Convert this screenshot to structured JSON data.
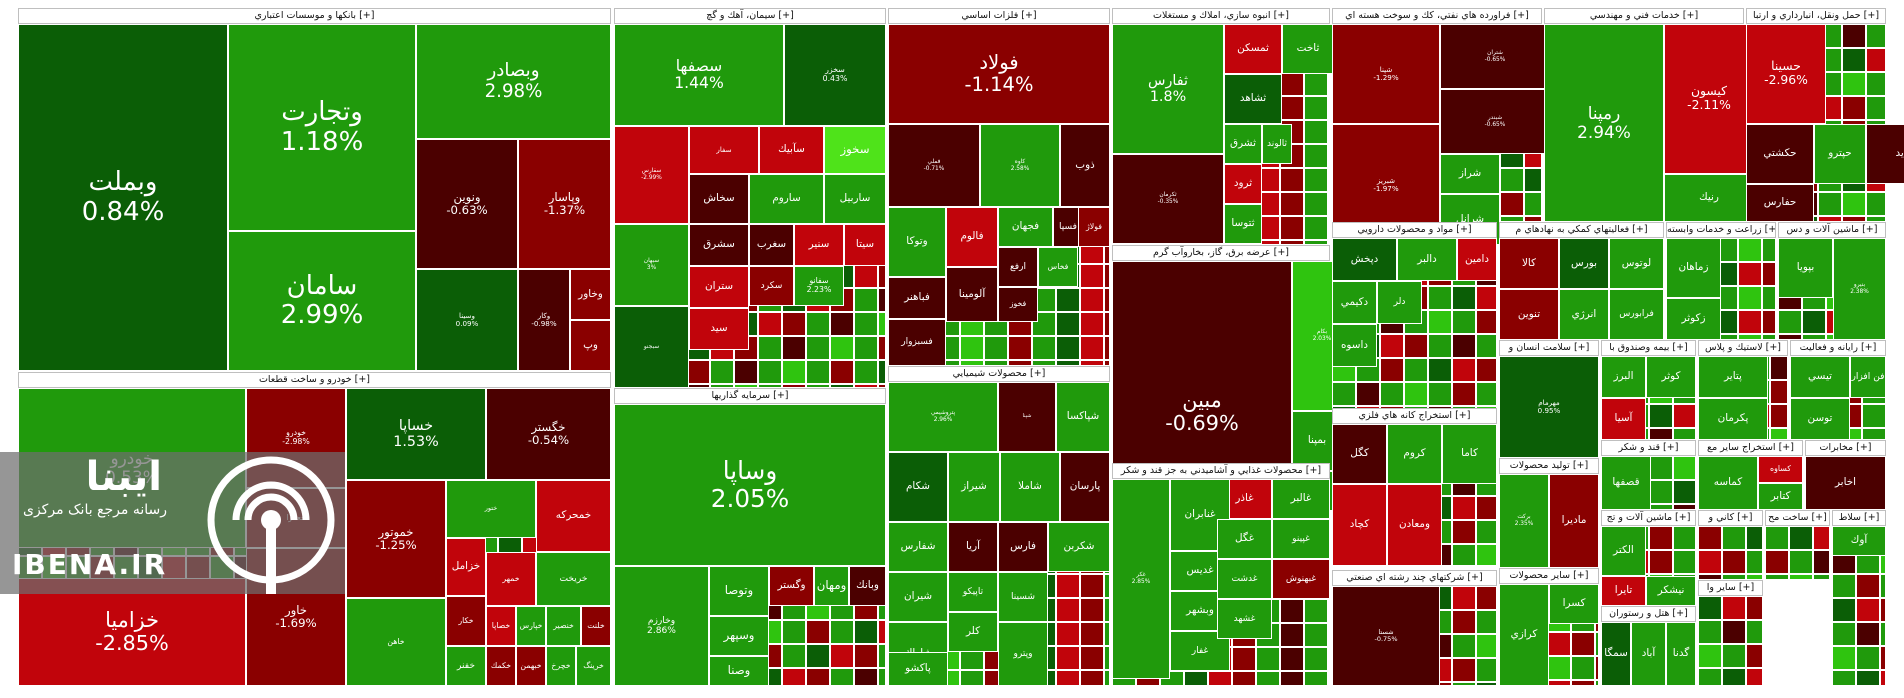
{
  "colors": {
    "deep_green": "#0b5e06",
    "green": "#209a0c",
    "light_green": "#2fc40f",
    "neon_green": "#4fe31a",
    "deep_red": "#4b0000",
    "red": "#8a0000",
    "bright_red": "#c1040b",
    "header_bg": "#ffffff"
  },
  "logo": {
    "brand": "ایبنا",
    "tagline": "رسانه مرجع بانک مرکزی",
    "site": "IBENA.IR"
  },
  "chart_data": {
    "type": "treemap",
    "sectors": [
      {
        "name": "بانکها و موسسات اعتباري [+]",
        "tiles": [
          {
            "s": "وبملت",
            "v": 0.84,
            "c": "deep_green"
          },
          {
            "s": "وتجارت",
            "v": 1.18,
            "c": "green"
          },
          {
            "s": "وبصادر",
            "v": 2.98,
            "c": "green"
          },
          {
            "s": "سامان",
            "v": 2.99,
            "c": "green"
          },
          {
            "s": "ونوين",
            "v": -0.63,
            "c": "deep_red"
          },
          {
            "s": "وپاسار",
            "v": -1.37,
            "c": "red"
          },
          {
            "s": "وسينا",
            "v": 0.09,
            "c": "deep_green"
          },
          {
            "s": "وكار",
            "v": -0.98,
            "c": "deep_red"
          },
          {
            "s": "وخاور",
            "c": "red"
          },
          {
            "s": "وپ",
            "c": "red"
          }
        ]
      },
      {
        "name": "خودرو و ساخت قطعات [+]",
        "tiles": [
          {
            "s": "خودرو",
            "v": 0.53,
            "c": "green"
          },
          {
            "s": "خساپا",
            "v": 1.53,
            "c": "deep_green"
          },
          {
            "s": "خگستر",
            "v": -0.54,
            "c": "deep_red"
          },
          {
            "s": "خموتور",
            "v": -1.25,
            "c": "red"
          },
          {
            "s": "خاور",
            "v": -1.69,
            "c": "red"
          },
          {
            "s": "خزاميا",
            "v": -2.85,
            "c": "bright_red"
          },
          {
            "s": "خمحركه",
            "c": "bright_red"
          },
          {
            "s": "ختور",
            "c": "green"
          },
          {
            "s": "خزامل",
            "c": "bright_red"
          },
          {
            "s": "خمهر",
            "c": "bright_red"
          },
          {
            "s": "خريخت",
            "c": "green"
          },
          {
            "s": "خكار",
            "c": "red"
          },
          {
            "s": "خصاپا",
            "c": "bright_red"
          },
          {
            "s": "خپارس",
            "c": "green"
          },
          {
            "s": "خنصير",
            "c": "green"
          },
          {
            "s": "خلنت",
            "c": "red"
          },
          {
            "s": "خفنر",
            "c": "green"
          },
          {
            "s": "خكمك",
            "c": "red"
          },
          {
            "s": "خبهمن",
            "c": "red"
          },
          {
            "s": "خچرخ",
            "c": "green"
          },
          {
            "s": "خرينگ",
            "c": "green"
          },
          {
            "s": "خعمرا",
            "c": "red"
          },
          {
            "s": "خاهن",
            "c": "green"
          },
          {
            "s": "خودرو_ب",
            "v": -2.98,
            "c": "red"
          }
        ]
      },
      {
        "name": "سيمان، آهك و گچ [+]",
        "tiles": [
          {
            "s": "سصفها",
            "v": 1.44,
            "c": "green"
          },
          {
            "s": "سخزر",
            "v": 0.43,
            "c": "deep_green"
          },
          {
            "s": "سفارس",
            "v": -2.99,
            "c": "bright_red"
          },
          {
            "s": "سفار",
            "c": "bright_red"
          },
          {
            "s": "سآبيك",
            "c": "bright_red"
          },
          {
            "s": "سخوز",
            "c": "neon_green"
          },
          {
            "s": "سخاش",
            "c": "deep_red"
          },
          {
            "s": "ساروم",
            "c": "green"
          },
          {
            "s": "ساربيل",
            "c": "green"
          },
          {
            "s": "سبهان",
            "v": 3,
            "c": "green"
          },
          {
            "s": "سغرب",
            "c": "deep_red"
          },
          {
            "s": "سنير",
            "c": "bright_red"
          },
          {
            "s": "سشرق",
            "c": "deep_red"
          },
          {
            "s": "سيتا",
            "c": "bright_red"
          },
          {
            "s": "ستران",
            "c": "bright_red"
          },
          {
            "s": "سكرد",
            "c": "red"
          },
          {
            "s": "سبجنو",
            "c": "deep_green"
          },
          {
            "s": "سيد",
            "c": "bright_red"
          },
          {
            "s": "سفانو",
            "v": 2.23,
            "c": "green"
          }
        ]
      },
      {
        "name": "سرمايه گذاريها [+]",
        "tiles": [
          {
            "s": "وساپا",
            "v": 2.05,
            "c": "green"
          },
          {
            "s": "وخارزم",
            "v": 2.86,
            "c": "green"
          },
          {
            "s": "وتوصا",
            "c": "green"
          },
          {
            "s": "وسپهر",
            "c": "green"
          },
          {
            "s": "وصنا",
            "c": "green"
          },
          {
            "s": "وگستر",
            "c": "red"
          },
          {
            "s": "ومهان",
            "c": "green"
          },
          {
            "s": "وبانك",
            "c": "deep_red"
          }
        ]
      },
      {
        "name": "فلزات اساسي [+]",
        "tiles": [
          {
            "s": "فولاد",
            "v": -1.14,
            "c": "red"
          },
          {
            "s": "فملي",
            "v": -0.71,
            "c": "deep_red"
          },
          {
            "s": "كاوه",
            "v": 2.58,
            "c": "green"
          },
          {
            "s": "ذوب",
            "c": "deep_red"
          },
          {
            "s": "وتوكا",
            "c": "green"
          },
          {
            "s": "فالوم",
            "c": "bright_red"
          },
          {
            "s": "فجهان",
            "c": "green"
          },
          {
            "s": "فسپا",
            "c": "deep_red"
          },
          {
            "s": "ارفع",
            "c": "deep_red"
          },
          {
            "s": "فخاس",
            "c": "green"
          },
          {
            "s": "فولاژ",
            "c": "red"
          },
          {
            "s": "فباهنر",
            "c": "deep_red"
          },
          {
            "s": "آلومينا",
            "c": "deep_red"
          },
          {
            "s": "فخوز",
            "c": "deep_red"
          },
          {
            "s": "فسبزوار",
            "c": "deep_red"
          }
        ]
      },
      {
        "name": "محصولات شيميايي [+]",
        "tiles": [
          {
            "s": "پتروشيمي",
            "v": 2.96,
            "c": "green"
          },
          {
            "s": "شپنا",
            "c": "deep_red"
          },
          {
            "s": "شپاكسا",
            "c": "green"
          },
          {
            "s": "شكام",
            "c": "deep_green"
          },
          {
            "s": "شيراز",
            "c": "green"
          },
          {
            "s": "شاملا",
            "c": "green"
          },
          {
            "s": "پارسان",
            "c": "deep_red"
          },
          {
            "s": "شفارس",
            "c": "green"
          },
          {
            "s": "آريا",
            "c": "deep_red"
          },
          {
            "s": "فارس",
            "c": "deep_red"
          },
          {
            "s": "شسينا",
            "c": "green"
          },
          {
            "s": "شكربن",
            "c": "green"
          },
          {
            "s": "شيران",
            "c": "green"
          },
          {
            "s": "تاپيكو",
            "c": "green"
          },
          {
            "s": "شاراك",
            "c": "green"
          },
          {
            "s": "كلر",
            "c": "green"
          },
          {
            "s": "پاكشو",
            "c": "green"
          },
          {
            "s": "وپترو",
            "c": "green"
          }
        ]
      },
      {
        "name": "انبوه سازي، املاك و مستغلات [+]",
        "tiles": [
          {
            "s": "ثفارس",
            "v": 1.8,
            "c": "green"
          },
          {
            "s": "ثمسكن",
            "c": "bright_red"
          },
          {
            "s": "ثاخت",
            "c": "green"
          },
          {
            "s": "ثشاهد",
            "c": "deep_green"
          },
          {
            "s": "ثشرق",
            "c": "green"
          },
          {
            "s": "ثالوند",
            "c": "green"
          },
          {
            "s": "ثرود",
            "c": "bright_red"
          },
          {
            "s": "ثتوسا",
            "c": "green"
          },
          {
            "s": "ثكرمان",
            "v": -0.35,
            "c": "deep_red"
          }
        ]
      },
      {
        "name": "عرضه برق، گاز، بخاروآب گرم [+]",
        "tiles": [
          {
            "s": "مبين",
            "v": -0.69,
            "c": "deep_red"
          },
          {
            "s": "بمپنا",
            "c": "green"
          },
          {
            "s": "وهور",
            "c": "green"
          },
          {
            "s": "بكام",
            "v": 2.03,
            "c": "light_green"
          }
        ]
      },
      {
        "name": "محصولات غذايي و آشاميدني به جز قند و شكر [+]",
        "tiles": [
          {
            "s": "غكر",
            "v": 2.85,
            "c": "green"
          },
          {
            "s": "غالبر",
            "c": "green"
          },
          {
            "s": "غاذر",
            "c": "bright_red"
          },
          {
            "s": "غنابران",
            "c": "green"
          },
          {
            "s": "غديس",
            "c": "green"
          },
          {
            "s": "غگل",
            "c": "green"
          },
          {
            "s": "وبشهر",
            "c": "green"
          },
          {
            "s": "غفار",
            "c": "green"
          },
          {
            "s": "غپينو",
            "c": "green"
          },
          {
            "s": "غبهنوش",
            "c": "red"
          },
          {
            "s": "غدشت",
            "c": "green"
          },
          {
            "s": "غشهد",
            "c": "green"
          }
        ]
      },
      {
        "name": "فراورده هاي نفتي، كك و سوخت هسته اي [+]",
        "tiles": [
          {
            "s": "شپنا",
            "v": -1.29,
            "c": "red"
          },
          {
            "s": "شبريز",
            "v": -1.97,
            "c": "red"
          },
          {
            "s": "شتران",
            "v": -0.65,
            "c": "deep_red"
          },
          {
            "s": "شبندر",
            "v": -0.65,
            "c": "deep_red"
          },
          {
            "s": "شراز",
            "c": "green"
          },
          {
            "s": "شرانل",
            "c": "green"
          }
        ]
      },
      {
        "name": "خدمات فني و مهندسي [+]",
        "tiles": [
          {
            "s": "رمپنا",
            "v": 2.94,
            "c": "green"
          },
          {
            "s": "كيسون",
            "v": -2.11,
            "c": "bright_red"
          },
          {
            "s": "رنيك",
            "c": "green"
          }
        ]
      },
      {
        "name": "حمل ونقل، انبارداري و ارتبا [+]",
        "tiles": [
          {
            "s": "حسينا",
            "v": -2.96,
            "c": "bright_red"
          },
          {
            "s": "حكشتي",
            "c": "deep_red"
          },
          {
            "s": "حپترو",
            "c": "green"
          },
          {
            "s": "حتايد",
            "c": "deep_red"
          },
          {
            "s": "حفارس",
            "c": "deep_red"
          }
        ]
      },
      {
        "name": "مواد و محصولات دارويي [+]",
        "tiles": [
          {
            "s": "دپخش",
            "c": "deep_green"
          },
          {
            "s": "دالبر",
            "c": "green"
          },
          {
            "s": "دامين",
            "c": "bright_red"
          },
          {
            "s": "دكيمي",
            "c": "green"
          },
          {
            "s": "دلر",
            "c": "green"
          },
          {
            "s": "داسوه",
            "c": "green"
          }
        ]
      },
      {
        "name": "فعاليتهاي كمكي به نهادهاي م [+]",
        "tiles": [
          {
            "s": "كالا",
            "c": "red"
          },
          {
            "s": "بورس",
            "c": "deep_green"
          },
          {
            "s": "تنوين",
            "c": "red"
          },
          {
            "s": "انرژي",
            "c": "green"
          },
          {
            "s": "فرابورس",
            "c": "green"
          },
          {
            "s": "لوتوس",
            "c": "green"
          }
        ]
      },
      {
        "name": "زراعت و خدمات وابسته [+]",
        "tiles": [
          {
            "s": "زماهان",
            "c": "green"
          },
          {
            "s": "زكوثر",
            "c": "green"
          }
        ]
      },
      {
        "name": "ماشين آلات و دس [+]",
        "tiles": [
          {
            "s": "بپويا",
            "c": "green"
          },
          {
            "s": "بنيرو",
            "v": 2.38,
            "c": "green"
          }
        ]
      },
      {
        "name": "استخراج كانه هاي فلزي [+]",
        "tiles": [
          {
            "s": "كگل",
            "c": "deep_red"
          },
          {
            "s": "كچاد",
            "c": "bright_red"
          },
          {
            "s": "كروم",
            "c": "green"
          },
          {
            "s": "كاما",
            "c": "green"
          },
          {
            "s": "ومعادن",
            "c": "bright_red"
          },
          {
            "s": "كنور",
            "v": 0,
            "c": "deep_red"
          }
        ]
      },
      {
        "name": "شركتهاي چند رشته اي صنعتي [+]",
        "tiles": [
          {
            "s": "شستا",
            "v": -0.75,
            "c": "deep_red"
          }
        ]
      },
      {
        "name": "سلامت انسان و [+]",
        "tiles": [
          {
            "s": "مهرمام",
            "v": 0.95,
            "c": "deep_green"
          }
        ]
      },
      {
        "name": "توليد محصولات [+]",
        "tiles": [
          {
            "s": "ماديرا",
            "c": "red"
          },
          {
            "s": "بركت",
            "v": 2.35,
            "c": "green"
          }
        ]
      },
      {
        "name": "ساير محصولات [+]",
        "tiles": [
          {
            "s": "كرازي",
            "c": "green"
          },
          {
            "s": "كسرا",
            "c": "green"
          }
        ]
      },
      {
        "name": "بيمه وصندوق با [+]",
        "tiles": [
          {
            "s": "البرز",
            "c": "green"
          },
          {
            "s": "آسيا",
            "c": "bright_red"
          },
          {
            "s": "كوثر",
            "c": "green"
          }
        ]
      },
      {
        "name": "لاستيك و پلاس [+]",
        "tiles": [
          {
            "s": "پتاير",
            "c": "green"
          },
          {
            "s": "پكرمان",
            "c": "green"
          }
        ]
      },
      {
        "name": "رايانه و فعاليت [+]",
        "tiles": [
          {
            "s": "تيسي",
            "c": "green"
          },
          {
            "s": "توسن",
            "c": "green"
          },
          {
            "s": "فن افزار",
            "c": "green"
          }
        ]
      },
      {
        "name": "قند و شكر [+]",
        "tiles": [
          {
            "s": "قصفها",
            "c": "green"
          }
        ]
      },
      {
        "name": "استخراج ساير مع [+]",
        "tiles": [
          {
            "s": "كماسه",
            "c": "green"
          },
          {
            "s": "كساوه",
            "c": "bright_red"
          },
          {
            "s": "كتابر",
            "c": "green"
          }
        ]
      },
      {
        "name": "مخابرات [+]",
        "tiles": [
          {
            "s": "اخابر",
            "c": "deep_red"
          }
        ]
      },
      {
        "name": "ماشين آلات و تج [+]",
        "tiles": [
          {
            "s": "تايرا",
            "c": "bright_red"
          },
          {
            "s": "الكتر",
            "c": "green"
          },
          {
            "s": "نيشكر",
            "c": "green"
          }
        ]
      },
      {
        "name": "هتل و رستوران [+]",
        "tiles": [
          {
            "s": "سمگا",
            "c": "deep_green"
          },
          {
            "s": "آباد",
            "c": "green"
          },
          {
            "s": "گدنا",
            "c": "green"
          }
        ]
      },
      {
        "name": "كاني و [+]",
        "tiles": []
      },
      {
        "name": "ساخت مح [+]",
        "tiles": []
      },
      {
        "name": "ساير وا [+]",
        "tiles": []
      },
      {
        "name": "سلاط [+]",
        "tiles": [
          {
            "s": "آوك",
            "c": "green"
          }
        ]
      },
      {
        "name": "وسايل [+]",
        "tiles": [
          {
            "s": "افق",
            "c": "deep_red"
          },
          {
            "s": "حفاري",
            "c": "deep_red"
          }
        ]
      }
    ]
  }
}
